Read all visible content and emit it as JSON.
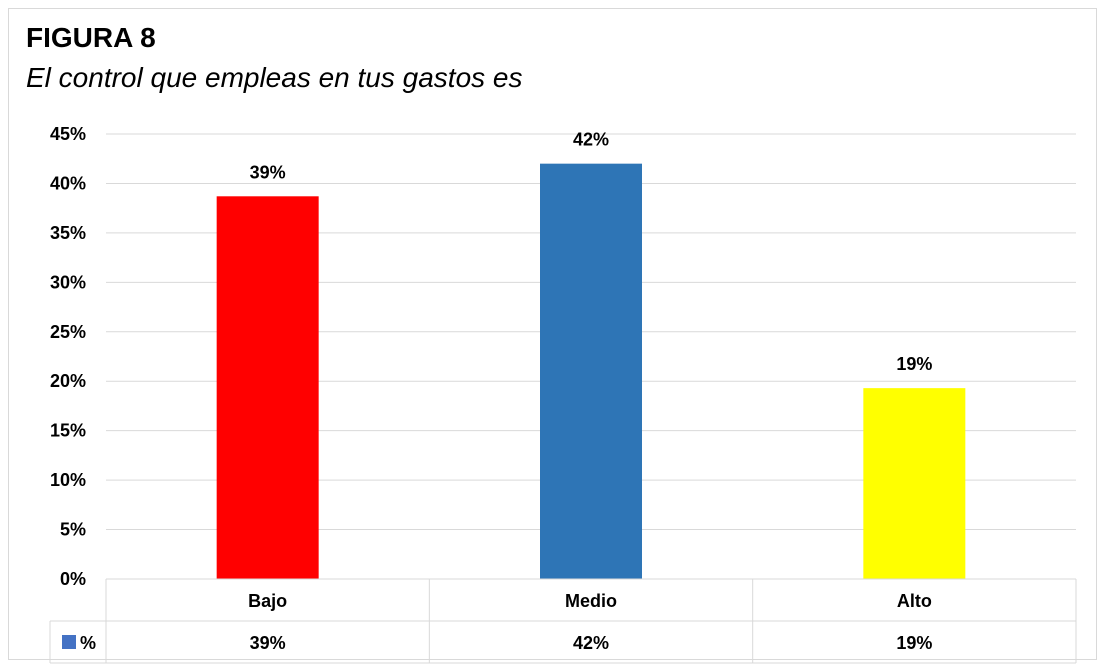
{
  "figure_label": "FIGURA 8",
  "subtitle": "El control que empleas en tus gastos es",
  "chart_data": {
    "type": "bar",
    "categories": [
      "Bajo",
      "Medio",
      "Alto"
    ],
    "values": [
      0.387,
      0.42,
      0.193
    ],
    "value_labels": [
      "39%",
      "42%",
      "19%"
    ],
    "bar_colors": [
      "#ff0000",
      "#2e75b6",
      "#ffff00"
    ],
    "ylim": [
      0,
      0.45
    ],
    "yticks": [
      "0%",
      "5%",
      "10%",
      "15%",
      "20%",
      "25%",
      "30%",
      "35%",
      "40%",
      "45%"
    ],
    "grid": true,
    "data_table": {
      "series_name": "%",
      "legend_color": "#4472c4",
      "row": [
        "39%",
        "42%",
        "19%"
      ]
    }
  }
}
